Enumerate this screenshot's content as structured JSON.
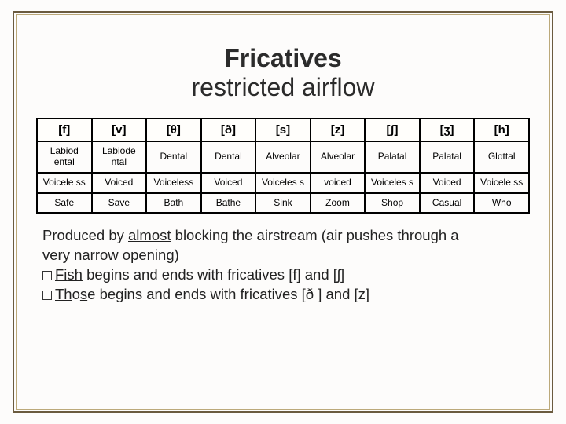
{
  "title": {
    "main": "Fricatives",
    "sub": "restricted airflow"
  },
  "table": {
    "headers": [
      "[f]",
      "[v]",
      "[θ]",
      "[ð]",
      "[s]",
      "[z]",
      "[ʃ]",
      "[ʒ]",
      "[h]"
    ],
    "place": [
      "Labiod ental",
      "Labiode ntal",
      "Dental",
      "Dental",
      "Alveolar",
      "Alveolar",
      "Palatal",
      "Palatal",
      "Glottal"
    ],
    "voicing": [
      "Voicele ss",
      "Voiced",
      "Voiceless",
      "Voiced",
      "Voiceles s",
      "voiced",
      "Voiceles s",
      "Voiced",
      "Voicele ss"
    ],
    "examples": [
      {
        "pre": "Sa",
        "u": "fe",
        "post": ""
      },
      {
        "pre": "Sa",
        "u": "ve",
        "post": ""
      },
      {
        "pre": "Ba",
        "u": "th",
        "post": ""
      },
      {
        "pre": "Ba",
        "u": "the",
        "post": ""
      },
      {
        "pre": "",
        "u": "S",
        "post": "ink"
      },
      {
        "pre": "",
        "u": "Z",
        "post": "oom"
      },
      {
        "pre": "",
        "u": "Sh",
        "post": "op"
      },
      {
        "pre": "Ca",
        "u": "s",
        "post": "ual"
      },
      {
        "pre": "W",
        "u": "h",
        "post": "o"
      }
    ]
  },
  "notes": {
    "line1a": "Produced by ",
    "line1u": "almost",
    "line1b": " blocking the airstream (air pushes through a",
    "line2": "very narrow opening)",
    "b1a": "Fi",
    "b1u": "sh",
    "b1b": " begins and ends with fricatives [f] and [ʃ]",
    "b2u1": "Th",
    "b2m": "o",
    "b2u2": "s",
    "b2e": "e",
    "b2b": " begins and ends with fricatives [ð ] and [z]"
  },
  "style": {
    "border_outer": "#6b5b3f",
    "border_inner": "#bca97a",
    "background": "#fdfcfb",
    "table_border": "#000000",
    "title_fontsize": 32,
    "header_fontsize": 15,
    "cell_fontsize": 12,
    "notes_fontsize": 18.5
  }
}
